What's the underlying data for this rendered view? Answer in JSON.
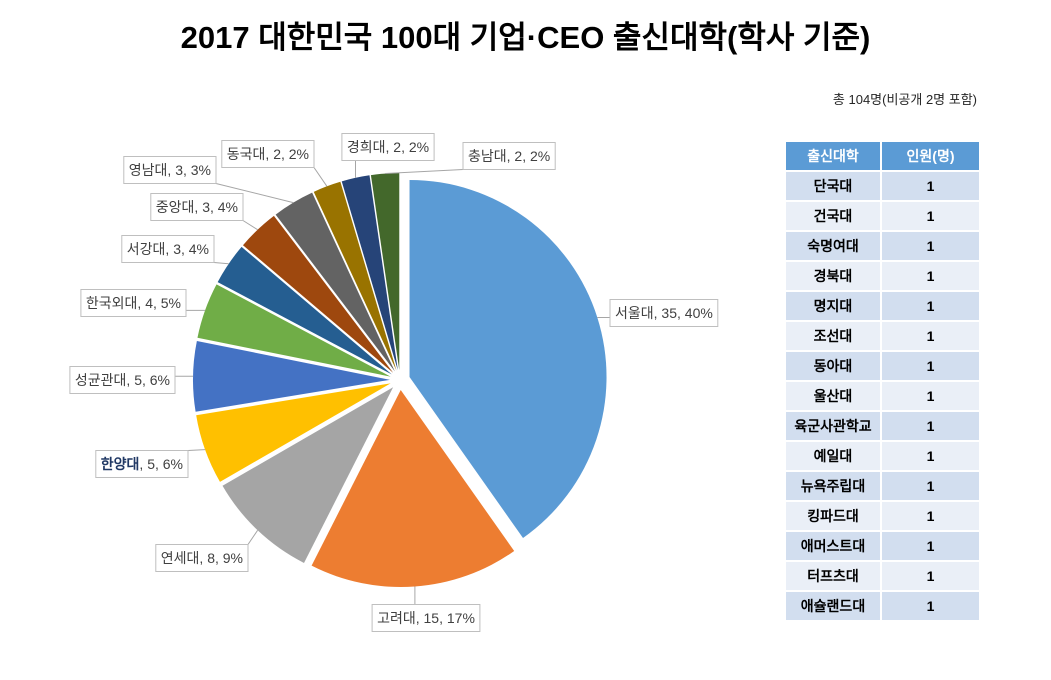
{
  "chart_data": {
    "type": "pie",
    "title": "2017 대한민국 100대 기업·CEO 출신대학(학사 기준)",
    "categories": [
      "서울대",
      "고려대",
      "연세대",
      "한양대",
      "성균관대",
      "한국외대",
      "서강대",
      "중앙대",
      "영남대",
      "동국대",
      "경희대",
      "충남대"
    ],
    "values": [
      35,
      15,
      8,
      5,
      5,
      4,
      3,
      3,
      3,
      2,
      2,
      2
    ],
    "percent_labels": [
      "40%",
      "17%",
      "9%",
      "6%",
      "6%",
      "5%",
      "4%",
      "4%",
      "3%",
      "2%",
      "2%",
      "2%"
    ],
    "colors": [
      "#5B9BD5",
      "#ED7D31",
      "#A5A5A5",
      "#FFC000",
      "#4472C4",
      "#70AD47",
      "#255E91",
      "#9E480E",
      "#636363",
      "#997300",
      "#264478",
      "#43682B"
    ],
    "exploded": true,
    "label_name_bold": [
      false,
      false,
      false,
      true,
      false,
      false,
      false,
      false,
      false,
      false,
      false,
      false
    ],
    "label_name_emphasis_color": "#203864"
  },
  "summary_note": "총 104명(비공개 2명 포함)",
  "table": {
    "headers": [
      "출신대학",
      "인원(명)"
    ],
    "rows": [
      [
        "단국대",
        1
      ],
      [
        "건국대",
        1
      ],
      [
        "숙명여대",
        1
      ],
      [
        "경북대",
        1
      ],
      [
        "명지대",
        1
      ],
      [
        "조선대",
        1
      ],
      [
        "동아대",
        1
      ],
      [
        "울산대",
        1
      ],
      [
        "육군사관학교",
        1
      ],
      [
        "예일대",
        1
      ],
      [
        "뉴욕주립대",
        1
      ],
      [
        "킹파드대",
        1
      ],
      [
        "애머스트대",
        1
      ],
      [
        "터프츠대",
        1
      ],
      [
        "애슐랜드대",
        1
      ]
    ],
    "header_color": "#5B9BD5",
    "band_colors": [
      "#D2DEEF",
      "#EAEFF7"
    ]
  }
}
